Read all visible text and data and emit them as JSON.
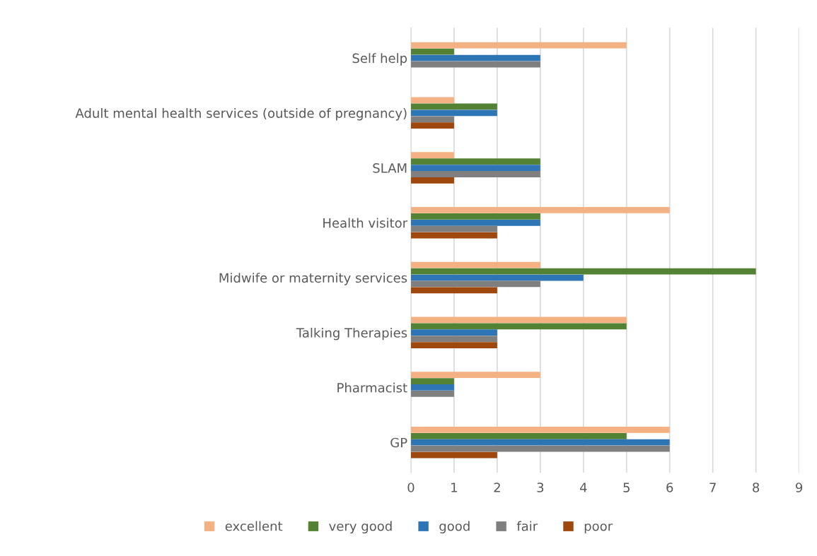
{
  "chart_data": {
    "type": "bar",
    "orientation": "horizontal",
    "categories": [
      "Self help",
      "Adult mental health services (outside of pregnancy)",
      "SLAM",
      "Health visitor",
      "Midwife or maternity services",
      "Talking Therapies",
      "Pharmacist",
      "GP"
    ],
    "series": [
      {
        "name": "excellent",
        "color": "#f4b183",
        "values": [
          5,
          1,
          1,
          6,
          3,
          5,
          3,
          6
        ]
      },
      {
        "name": "very good",
        "color": "#548235",
        "values": [
          1,
          2,
          3,
          3,
          8,
          5,
          1,
          5
        ]
      },
      {
        "name": "good",
        "color": "#2e75b6",
        "values": [
          3,
          2,
          3,
          3,
          4,
          2,
          1,
          6
        ]
      },
      {
        "name": "fair",
        "color": "#7f7f7f",
        "values": [
          3,
          1,
          3,
          2,
          3,
          2,
          1,
          6
        ]
      },
      {
        "name": "poor",
        "color": "#9e480e",
        "values": [
          null,
          1,
          1,
          2,
          2,
          2,
          null,
          2
        ]
      }
    ],
    "xlim": [
      0,
      9
    ],
    "xticks": [
      0,
      1,
      2,
      3,
      4,
      5,
      6,
      7,
      8,
      9
    ],
    "grid": "x",
    "legend": "bottom"
  }
}
